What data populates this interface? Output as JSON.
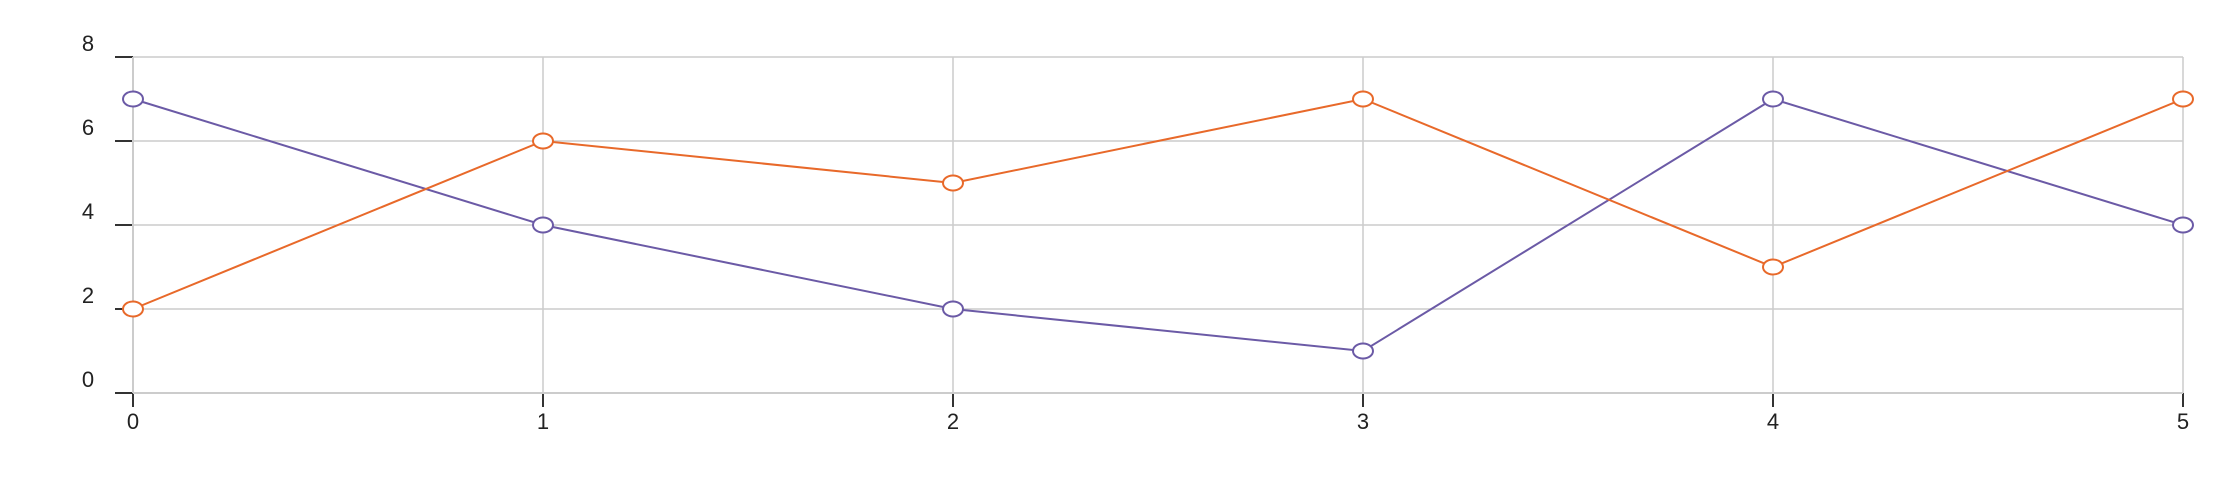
{
  "chart_data": {
    "type": "line",
    "title": "",
    "xlabel": "",
    "ylabel": "",
    "x": [
      0,
      1,
      2,
      3,
      4,
      5
    ],
    "xlim": [
      0,
      5
    ],
    "ylim": [
      0,
      8
    ],
    "xticks": [
      0,
      1,
      2,
      3,
      4,
      5
    ],
    "yticks": [
      0,
      2,
      4,
      6,
      8
    ],
    "grid": true,
    "legend": "none",
    "series": [
      {
        "values": [
          7,
          4,
          2,
          1,
          7,
          4
        ],
        "color": "#6b5aa6",
        "marker": "circle"
      },
      {
        "values": [
          2,
          6,
          5,
          7,
          3,
          7
        ],
        "color": "#e8692a",
        "marker": "circle"
      }
    ]
  }
}
